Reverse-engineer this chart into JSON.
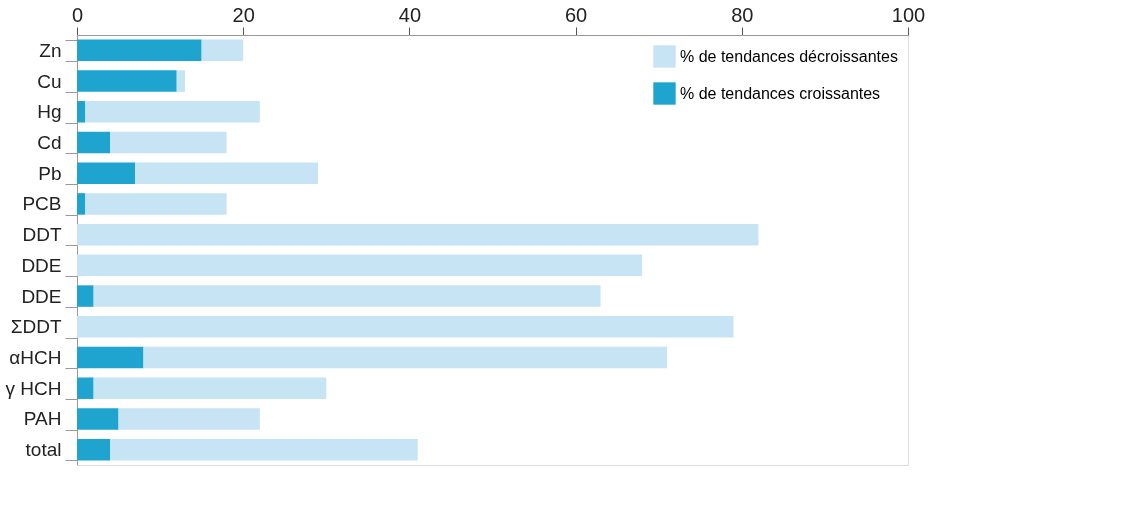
{
  "chart_data": {
    "type": "bar",
    "orientation": "horizontal",
    "stacked": true,
    "categories": [
      "Zn",
      "Cu",
      "Hg",
      "Cd",
      "Pb",
      "PCB",
      "DDT",
      "DDE",
      "DDE",
      "ΣDDT",
      "αHCH",
      "γ HCH",
      "PAH",
      "total"
    ],
    "series": [
      {
        "name": "% de tendances croissantes",
        "color": "#1fa3cf",
        "values": [
          15,
          12,
          1,
          4,
          7,
          1,
          0,
          0,
          2,
          0,
          8,
          2,
          5,
          4
        ]
      },
      {
        "name": "% de tendances décroissantes",
        "color": "#c6e4f4",
        "values": [
          5,
          1,
          21,
          14,
          22,
          17,
          82,
          68,
          61,
          79,
          63,
          28,
          17,
          37
        ]
      }
    ],
    "xlim": [
      0,
      100
    ],
    "xticks": [
      0,
      20,
      40,
      60,
      80,
      100
    ],
    "grid": false,
    "legend": "top right"
  }
}
